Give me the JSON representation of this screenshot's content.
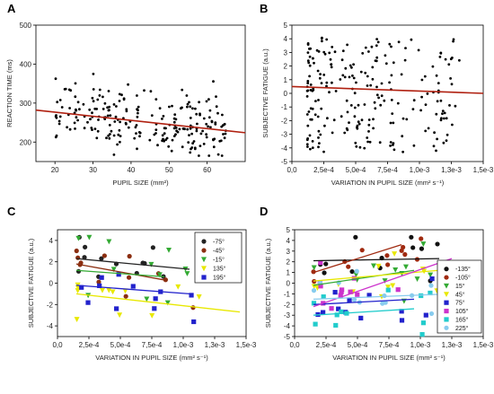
{
  "chart_data": [
    {
      "panel": "A",
      "type": "scatter",
      "xlabel": "PUPIL SIZE (mm²)",
      "ylabel": "REACTION TIME (ms)",
      "xlim": [
        15,
        70
      ],
      "ylim": [
        150,
        500
      ],
      "xticks": [
        "20",
        "30",
        "40",
        "50",
        "60"
      ],
      "xtick_values": [
        20,
        30,
        40,
        50,
        60
      ],
      "yticks": [
        "200",
        "300",
        "400",
        "500"
      ],
      "ytick_values": [
        200,
        300,
        400,
        500
      ],
      "grid": false,
      "points_color": "#000000",
      "fit_line": {
        "x": [
          15,
          70
        ],
        "y": [
          282,
          224
        ],
        "color": "#b02010"
      },
      "n_points": 230,
      "x_range_of_points": [
        18,
        65
      ],
      "y_center": 250
    },
    {
      "panel": "B",
      "type": "scatter",
      "xlabel": "VARIATION IN PUPIL SIZE (mm² s⁻¹)",
      "ylabel": "SUBJECTIVE FATIGUE (a.u.)",
      "xlim": [
        0,
        0.0015
      ],
      "ylim": [
        -5,
        5
      ],
      "xticks": [
        "0,0",
        "2,5e-4",
        "5,0e-4",
        "7,5e-4",
        "1,0e-3",
        "1,3e-3",
        "1,5e-3"
      ],
      "xtick_values": [
        0,
        0.00025,
        0.0005,
        0.00075,
        0.001,
        0.00125,
        0.0015
      ],
      "yticks": [
        "-5",
        "-4",
        "-3",
        "-2",
        "-1",
        "0",
        "1",
        "2",
        "3",
        "4",
        "5"
      ],
      "ytick_values": [
        -5,
        -4,
        -3,
        -2,
        -1,
        0,
        1,
        2,
        3,
        4,
        5
      ],
      "grid": false,
      "points_color": "#000000",
      "fit_line": {
        "x": [
          0,
          0.0015
        ],
        "y": [
          0.5,
          0.0
        ],
        "color": "#b02010"
      },
      "n_points": 230
    },
    {
      "panel": "C",
      "type": "scatter",
      "xlabel": "VARIATION IN PUPIL SIZE (mm² s⁻¹)",
      "ylabel": "SUBJECTIVE FATIGUE (a.u.)",
      "xlim": [
        0,
        0.0015
      ],
      "ylim": [
        -5,
        5
      ],
      "xticks": [
        "0,0",
        "2,5e-4",
        "5,0e-4",
        "7,5e-4",
        "1,0e-3",
        "1,3e-3",
        "1,5e-3"
      ],
      "xtick_values": [
        0,
        0.00025,
        0.0005,
        0.00075,
        0.001,
        0.00125,
        0.0015
      ],
      "yticks": [
        "-4",
        "-2",
        "0",
        "2",
        "4"
      ],
      "ytick_values": [
        -4,
        -2,
        0,
        2,
        4
      ],
      "legend_position": "top-right",
      "series": [
        {
          "name": "-75°",
          "color": "#222222",
          "marker": "circle",
          "fit": {
            "x": [
              0.00015,
              0.00105
            ],
            "y": [
              2.3,
              1.3
            ]
          }
        },
        {
          "name": "-45°",
          "color": "#8b2e10",
          "marker": "circle",
          "fit": {
            "x": [
              0.00015,
              0.00085
            ],
            "y": [
              1.8,
              0.3
            ]
          }
        },
        {
          "name": "-15°",
          "color": "#33aa33",
          "marker": "triangle-down",
          "fit": {
            "x": [
              0.00015,
              0.00085
            ],
            "y": [
              1.2,
              0.6
            ]
          }
        },
        {
          "name": "135°",
          "color": "#e8e800",
          "marker": "triangle-down",
          "fit": {
            "x": [
              0.00015,
              0.00145
            ],
            "y": [
              -1.0,
              -2.7
            ]
          }
        },
        {
          "name": "195°",
          "color": "#2222cc",
          "marker": "square",
          "fit": {
            "x": [
              0.00015,
              0.00105
            ],
            "y": [
              -0.2,
              -1.0
            ]
          }
        }
      ]
    },
    {
      "panel": "D",
      "type": "scatter",
      "xlabel": "VARIATION IN PUPIL SIZE (mm² s⁻¹)",
      "ylabel": "SUBJECTIVE FATIGUE (a.u.)",
      "xlim": [
        0,
        0.0015
      ],
      "ylim": [
        -5,
        5
      ],
      "xticks": [
        "0,0",
        "2,5e-4",
        "5,0e-4",
        "7,5e-4",
        "1,0e-3",
        "1,3e-3",
        "1,5e-3"
      ],
      "xtick_values": [
        0,
        0.00025,
        0.0005,
        0.00075,
        0.001,
        0.00125,
        0.0015
      ],
      "yticks": [
        "-5",
        "-4",
        "-3",
        "-2",
        "-1",
        "0",
        "1",
        "2",
        "3",
        "4",
        "5"
      ],
      "ytick_values": [
        -5,
        -4,
        -3,
        -2,
        -1,
        0,
        1,
        2,
        3,
        4,
        5
      ],
      "legend_position": "right",
      "series": [
        {
          "name": "-135°",
          "color": "#111111",
          "marker": "circle",
          "fit": {
            "x": [
              0.00015,
              0.00115
            ],
            "y": [
              2.1,
              2.3
            ]
          }
        },
        {
          "name": "-105°",
          "color": "#a02a10",
          "marker": "circle",
          "fit": {
            "x": [
              0.00015,
              0.00085
            ],
            "y": [
              1.0,
              3.6
            ]
          }
        },
        {
          "name": "15°",
          "color": "#33aa33",
          "marker": "triangle-down",
          "fit": {
            "x": [
              0.00015,
              0.00095
            ],
            "y": [
              -0.2,
              1.2
            ]
          }
        },
        {
          "name": "45°",
          "color": "#e8e800",
          "marker": "triangle-down",
          "fit": {
            "x": [
              0.00015,
              0.00125
            ],
            "y": [
              0.2,
              1.3
            ]
          }
        },
        {
          "name": "75°",
          "color": "#2222cc",
          "marker": "square",
          "fit": {
            "x": [
              0.00015,
              0.00095
            ],
            "y": [
              -2.0,
              -1.5
            ]
          }
        },
        {
          "name": "105°",
          "color": "#cc33cc",
          "marker": "square",
          "fit": {
            "x": [
              0.00015,
              0.00125
            ],
            "y": [
              -2.2,
              2.3
            ]
          }
        },
        {
          "name": "165°",
          "color": "#22cccc",
          "marker": "square",
          "fit": {
            "x": [
              0.00015,
              0.00095
            ],
            "y": [
              -3.0,
              -2.4
            ]
          }
        },
        {
          "name": "225°",
          "color": "#88ccee",
          "marker": "circle",
          "fit": {
            "x": [
              0.00015,
              0.00125
            ],
            "y": [
              -1.5,
              -1.0
            ]
          }
        }
      ]
    }
  ]
}
